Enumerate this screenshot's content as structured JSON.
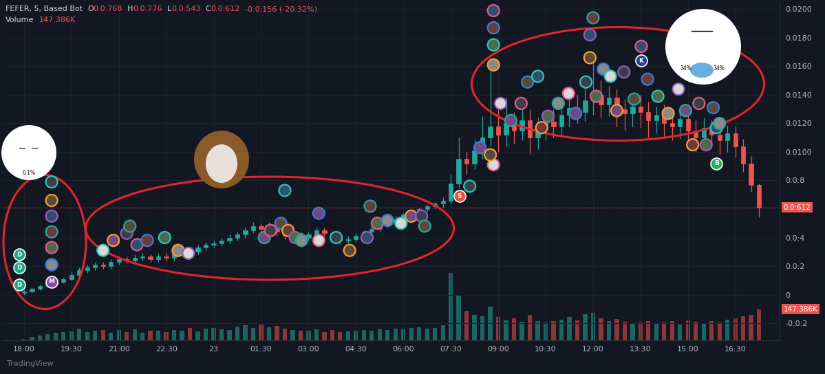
{
  "chart_data": {
    "type": "candlestick",
    "title": "FEFER, 5, Based Bot",
    "header_values": [
      {
        "label": "O",
        "value": "0.0:768"
      },
      {
        "label": "H",
        "value": "0.0:776"
      },
      {
        "label": "L",
        "value": "0.0:543"
      },
      {
        "label": "C",
        "value": "0.0:612"
      }
    ],
    "change": "-0.0:156 (-20.32%)",
    "volume_title": "Volume",
    "volume_value_label": "147.386K",
    "last_price_label": "0.0:612",
    "watermark": "TradingView",
    "face_labels": [
      "0.1%",
      "34%",
      "34%"
    ],
    "categories": [
      "18:00",
      null,
      null,
      null,
      null,
      null,
      "19:30",
      null,
      null,
      null,
      null,
      null,
      "21:00",
      null,
      null,
      null,
      null,
      null,
      "22:30",
      null,
      null,
      null,
      null,
      null,
      "23",
      null,
      null,
      null,
      null,
      null,
      "01:30",
      null,
      null,
      null,
      null,
      null,
      "03:00",
      null,
      null,
      null,
      null,
      null,
      "04:30",
      null,
      null,
      null,
      null,
      null,
      "06:00",
      null,
      null,
      null,
      null,
      null,
      "07:30",
      null,
      null,
      null,
      null,
      null,
      "09:00",
      null,
      null,
      null,
      null,
      null,
      "10:30",
      null,
      null,
      null,
      null,
      null,
      "12:00",
      null,
      null,
      null,
      null,
      null,
      "13:30",
      null,
      null,
      null,
      null,
      null,
      "15:00",
      null,
      null,
      null,
      null,
      null,
      "16:30",
      null,
      null,
      null
    ],
    "open": [
      0.0001,
      0.0002,
      0.0004,
      0.0006,
      0.0007,
      0.0009,
      0.0011,
      0.0014,
      0.0017,
      0.0019,
      0.0021,
      0.002,
      0.0023,
      0.0025,
      0.0024,
      0.0026,
      0.0027,
      0.0025,
      0.0027,
      0.0026,
      0.0029,
      0.0031,
      0.003,
      0.0033,
      0.0035,
      0.0036,
      0.0038,
      0.004,
      0.0042,
      0.0045,
      0.0048,
      0.0046,
      0.0049,
      0.0044,
      0.0041,
      0.0043,
      0.004,
      0.0042,
      0.0045,
      0.0043,
      0.004,
      0.0038,
      0.0039,
      0.0041,
      0.0044,
      0.0046,
      0.0049,
      0.0051,
      0.0053,
      0.0056,
      0.0058,
      0.006,
      0.0062,
      0.0064,
      0.0066,
      0.0078,
      0.0095,
      0.0092,
      0.0101,
      0.011,
      0.0118,
      0.0112,
      0.012,
      0.0115,
      0.0122,
      0.011,
      0.0116,
      0.0121,
      0.0118,
      0.0126,
      0.0131,
      0.0128,
      0.0136,
      0.014,
      0.0133,
      0.0138,
      0.013,
      0.0127,
      0.0132,
      0.0128,
      0.0122,
      0.0126,
      0.012,
      0.0118,
      0.0123,
      0.0115,
      0.011,
      0.0117,
      0.0112,
      0.0108,
      0.0113,
      0.0104,
      0.0092,
      0.00768
    ],
    "high": [
      0.0003,
      0.0005,
      0.0007,
      0.0008,
      0.001,
      0.0012,
      0.0016,
      0.0019,
      0.0021,
      0.0023,
      0.0023,
      0.0025,
      0.0027,
      0.0027,
      0.0028,
      0.0029,
      0.0028,
      0.0029,
      0.0029,
      0.0031,
      0.0033,
      0.0032,
      0.0035,
      0.0037,
      0.0038,
      0.004,
      0.0042,
      0.0044,
      0.0047,
      0.0051,
      0.005,
      0.0051,
      0.005,
      0.0046,
      0.0045,
      0.0044,
      0.0044,
      0.0047,
      0.0047,
      0.0044,
      0.0042,
      0.0041,
      0.0043,
      0.0045,
      0.0048,
      0.005,
      0.0052,
      0.0055,
      0.0057,
      0.0059,
      0.0061,
      0.0063,
      0.0065,
      0.0068,
      0.0084,
      0.011,
      0.01,
      0.0108,
      0.0125,
      0.016,
      0.013,
      0.0138,
      0.0128,
      0.0135,
      0.013,
      0.0124,
      0.0128,
      0.013,
      0.0134,
      0.0142,
      0.014,
      0.0145,
      0.0165,
      0.015,
      0.0146,
      0.0144,
      0.0137,
      0.014,
      0.014,
      0.0135,
      0.0132,
      0.0133,
      0.0127,
      0.013,
      0.0128,
      0.0122,
      0.0124,
      0.0122,
      0.0118,
      0.0119,
      0.0118,
      0.0109,
      0.0097,
      0.00776
    ],
    "low": [
      0.0,
      0.0001,
      0.0003,
      0.0005,
      0.0006,
      0.0008,
      0.001,
      0.0012,
      0.0015,
      0.0017,
      0.0018,
      0.0018,
      0.0021,
      0.0022,
      0.0022,
      0.0024,
      0.0023,
      0.0023,
      0.0024,
      0.0024,
      0.0027,
      0.0028,
      0.0028,
      0.0031,
      0.0033,
      0.0034,
      0.0036,
      0.0038,
      0.004,
      0.0043,
      0.0043,
      0.0044,
      0.0041,
      0.0039,
      0.0039,
      0.0038,
      0.0038,
      0.004,
      0.0041,
      0.0038,
      0.0036,
      0.0036,
      0.0037,
      0.0039,
      0.0042,
      0.0044,
      0.0047,
      0.0049,
      0.0051,
      0.0054,
      0.0056,
      0.0058,
      0.006,
      0.0061,
      0.0064,
      0.0075,
      0.0084,
      0.0088,
      0.0095,
      0.0104,
      0.01,
      0.0104,
      0.0106,
      0.0108,
      0.0098,
      0.0102,
      0.0108,
      0.011,
      0.0112,
      0.0118,
      0.012,
      0.0121,
      0.0126,
      0.0124,
      0.0125,
      0.0118,
      0.0115,
      0.0118,
      0.0117,
      0.011,
      0.0113,
      0.011,
      0.0108,
      0.0109,
      0.0106,
      0.01,
      0.0103,
      0.0104,
      0.0098,
      0.01,
      0.0096,
      0.0086,
      0.0072,
      0.00543
    ],
    "close": [
      0.0002,
      0.0004,
      0.0006,
      0.0007,
      0.0009,
      0.0011,
      0.0014,
      0.0017,
      0.0019,
      0.0021,
      0.002,
      0.0023,
      0.0025,
      0.0024,
      0.0026,
      0.0027,
      0.0025,
      0.0027,
      0.0026,
      0.0029,
      0.0031,
      0.003,
      0.0033,
      0.0035,
      0.0036,
      0.0038,
      0.004,
      0.0042,
      0.0045,
      0.0048,
      0.0046,
      0.0049,
      0.0044,
      0.0041,
      0.0043,
      0.004,
      0.0042,
      0.0045,
      0.0043,
      0.004,
      0.0038,
      0.0039,
      0.0041,
      0.0044,
      0.0046,
      0.0049,
      0.0051,
      0.0053,
      0.0056,
      0.0058,
      0.006,
      0.0062,
      0.0064,
      0.0066,
      0.0078,
      0.0095,
      0.0092,
      0.0101,
      0.011,
      0.0118,
      0.0112,
      0.012,
      0.0115,
      0.0122,
      0.011,
      0.0116,
      0.0121,
      0.0118,
      0.0126,
      0.0131,
      0.0128,
      0.0136,
      0.014,
      0.0133,
      0.0138,
      0.013,
      0.0127,
      0.0132,
      0.0128,
      0.0122,
      0.0126,
      0.012,
      0.0118,
      0.0123,
      0.0115,
      0.011,
      0.0117,
      0.0112,
      0.0108,
      0.0113,
      0.0104,
      0.0092,
      0.00768,
      0.00612
    ],
    "volume": {
      "axis": "y2",
      "values": [
        8000,
        15000,
        22000,
        30000,
        35000,
        40000,
        42000,
        55000,
        38000,
        45000,
        50000,
        36000,
        48000,
        40000,
        52000,
        35000,
        44000,
        47000,
        39000,
        50000,
        46000,
        58000,
        42000,
        55000,
        60000,
        52000,
        48000,
        65000,
        70000,
        58000,
        75000,
        62000,
        68000,
        55000,
        50000,
        46000,
        44000,
        52000,
        40000,
        48000,
        38000,
        42000,
        45000,
        50000,
        47000,
        53000,
        49000,
        56000,
        52000,
        58000,
        61000,
        55000,
        60000,
        72000,
        320000,
        210000,
        140000,
        120000,
        115000,
        160000,
        110000,
        95000,
        105000,
        88000,
        120000,
        92000,
        85000,
        90000,
        98000,
        110000,
        95000,
        125000,
        130000,
        105000,
        90000,
        100000,
        88000,
        82000,
        86000,
        92000,
        78000,
        84000,
        90000,
        76000,
        95000,
        88000,
        80000,
        92000,
        86000,
        98000,
        105000,
        115000,
        120000,
        147386
      ]
    },
    "avatars": {
      "x": [
        3.5,
        3.5,
        3.5,
        3.5,
        3.5,
        3.5,
        10.0,
        11.3,
        13.0,
        13.4,
        14.3,
        15.6,
        17.8,
        19.5,
        20.8,
        30.4,
        31.2,
        32.5,
        33.0,
        33.4,
        34.3,
        35.1,
        37.3,
        37.3,
        39.5,
        41.2,
        43.4,
        43.8,
        44.7,
        46.0,
        47.7,
        49.0,
        50.3,
        50.7,
        59.4,
        59.4,
        59.4,
        59.4,
        60.3,
        61.6,
        62.9,
        63.7,
        65.0,
        65.5,
        66.3,
        67.6,
        68.9,
        69.8,
        71.1,
        71.6,
        71.6,
        72.0,
        72.4,
        73.3,
        74.2,
        75.0,
        75.9,
        77.2,
        78.1,
        78.9,
        80.2,
        81.5,
        82.8,
        83.7,
        85.4,
        87.2,
        87.6,
        84.6,
        86.3,
        88.0,
        59.4,
        57.7,
        56.4,
        59.0
      ],
      "y": [
        0.0079,
        0.0066,
        0.0055,
        0.0044,
        0.0033,
        0.0021,
        0.0031,
        0.0038,
        0.0043,
        0.0048,
        0.0035,
        0.0038,
        0.004,
        0.0031,
        0.0029,
        0.004,
        0.0045,
        0.005,
        0.0073,
        0.0045,
        0.004,
        0.0038,
        0.0038,
        0.0057,
        0.004,
        0.0031,
        0.004,
        0.0062,
        0.005,
        0.0052,
        0.005,
        0.0055,
        0.0055,
        0.0048,
        0.0199,
        0.0187,
        0.0175,
        0.0161,
        0.0134,
        0.0122,
        0.0134,
        0.0149,
        0.0153,
        0.0117,
        0.0125,
        0.0134,
        0.0141,
        0.0127,
        0.0149,
        0.0166,
        0.0182,
        0.0194,
        0.0139,
        0.0158,
        0.0153,
        0.0129,
        0.0156,
        0.0137,
        0.0174,
        0.0151,
        0.0139,
        0.0127,
        0.0144,
        0.0129,
        0.0134,
        0.0131,
        0.0117,
        0.0105,
        0.0105,
        0.012,
        0.0091,
        0.0103,
        0.0076,
        0.0098
      ]
    },
    "lettered_avatars": [
      {
        "x": -0.6,
        "y": 0.0028,
        "label": "D"
      },
      {
        "x": -0.6,
        "y": 0.0019,
        "label": "D"
      },
      {
        "x": -0.6,
        "y": 0.0007,
        "label": "D"
      },
      {
        "x": 3.5,
        "y": 0.0009,
        "label": "M"
      },
      {
        "x": 55.1,
        "y": 0.0069,
        "label": "S"
      },
      {
        "x": 87.6,
        "y": 0.0092,
        "label": "B"
      },
      {
        "x": 78.1,
        "y": 0.0164,
        "label": "K"
      }
    ],
    "xlim": [
      -2.6,
      95.6
    ],
    "ylim": [
      -0.0032,
      0.0205
    ],
    "yticks": [
      {
        "value": 0.02,
        "label": "0.0200"
      },
      {
        "value": 0.018,
        "label": "0.0180"
      },
      {
        "value": 0.016,
        "label": "0.0160"
      },
      {
        "value": 0.014,
        "label": "0.0140"
      },
      {
        "value": 0.012,
        "label": "0.0120"
      },
      {
        "value": 0.01,
        "label": "0.0100"
      },
      {
        "value": 0.008,
        "label": "0.0:8"
      },
      {
        "value": 0.004,
        "label": "0.0:4"
      },
      {
        "value": 0.002,
        "label": "0.0:2"
      },
      0,
      {
        "value": -0.002,
        "label": "-0.0:2"
      }
    ],
    "y2lim": [
      0,
      1600000
    ],
    "y2ticks": [],
    "grid": true
  }
}
